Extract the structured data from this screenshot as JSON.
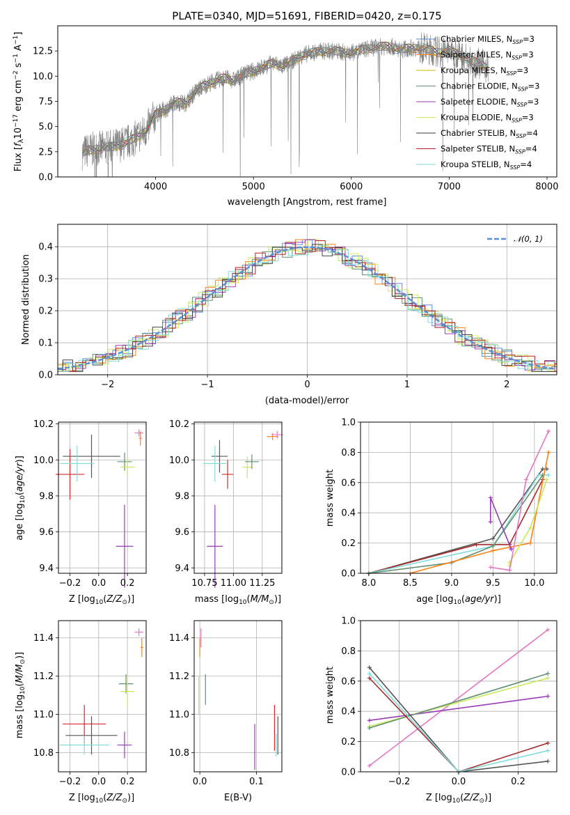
{
  "chart_data": [
    {
      "type": "line",
      "title": "PLATE=0340, MJD=51691, FIBERID=0420, z=0.175",
      "xlabel": "wavelength [Angstrom, rest frame]",
      "ylabel": "Flux [f_λ 10^-17 erg cm^-2 s^-1 A^-1]",
      "xlim": [
        3000,
        8100
      ],
      "ylim": [
        0,
        15
      ],
      "xticks": [
        "4000",
        "5000",
        "6000",
        "7000",
        "8000"
      ],
      "yticks": [
        "0.0",
        "2.5",
        "5.0",
        "7.5",
        "10.0",
        "12.5"
      ],
      "grid": false,
      "legend_position": "top-right",
      "data_color": "#808080",
      "continuum_x": [
        3250,
        3300,
        3400,
        3500,
        3600,
        3700,
        3800,
        3900,
        3950,
        4000,
        4100,
        4200,
        4300,
        4400,
        4500,
        4600,
        4700,
        4800,
        4900,
        5000,
        5100,
        5200,
        5300,
        5400,
        5500,
        5600,
        5700,
        5800,
        5900,
        6000,
        6100,
        6200,
        6300,
        6400,
        6500,
        6600,
        6700,
        6800,
        6900,
        7000,
        7100,
        7200,
        7300,
        7400
      ],
      "continuum_y": [
        2.4,
        2.6,
        2.8,
        2.9,
        3.1,
        3.4,
        3.9,
        4.6,
        5.4,
        6.2,
        6.7,
        7.4,
        7.3,
        8.4,
        9.1,
        9.5,
        9.8,
        9.6,
        10.2,
        10.5,
        10.9,
        11.3,
        11.0,
        11.5,
        12.1,
        12.3,
        12.5,
        12.5,
        12.4,
        12.3,
        12.6,
        12.8,
        12.9,
        13.0,
        12.6,
        12.8,
        12.8,
        12.6,
        12.4,
        12.5,
        12.2,
        11.6,
        11.3,
        10.8
      ]
    },
    {
      "type": "line",
      "title": "",
      "xlabel": "(data-model)/error",
      "ylabel": "Normed distribution",
      "xlim": [
        -2.5,
        2.5
      ],
      "ylim": [
        0,
        0.47
      ],
      "xticks": [
        "−2",
        "−1",
        "0",
        "1",
        "2"
      ],
      "yticks": [
        "0.0",
        "0.1",
        "0.2",
        "0.3",
        "0.4"
      ],
      "grid": true,
      "legend_position": "top-right",
      "legend": [
        "𝒩(0, 1)"
      ],
      "gaussian": {
        "mean": 0,
        "sigma": 1,
        "color": "#5b8ed6"
      },
      "histogram_bin_width": 0.1,
      "histogram_range": [
        -2.5,
        2.5
      ]
    },
    {
      "type": "scatter",
      "xlabel": "Z [log10(Z/Z⊙)]",
      "ylabel": "age  [log10(age/yr)]",
      "xlim": [
        -0.28,
        0.33
      ],
      "ylim": [
        9.37,
        10.21
      ],
      "xticks": [
        "−0.2",
        "0.0",
        "0.2"
      ],
      "yticks": [
        "9.4",
        "9.6",
        "9.8",
        "10.0",
        "10.2"
      ],
      "grid": true,
      "points": [
        {
          "x": -0.2,
          "y": 9.92,
          "xerr": 0.1,
          "yerr": 0.14,
          "color": "#d62728"
        },
        {
          "x": -0.05,
          "y": 10.02,
          "xerr": 0.2,
          "yerr": 0.12,
          "color": "#555555"
        },
        {
          "x": -0.15,
          "y": 9.98,
          "xerr": 0.12,
          "yerr": 0.1,
          "color": "#7fdbda"
        },
        {
          "x": 0.18,
          "y": 9.52,
          "xerr": 0.06,
          "yerr": 0.23,
          "color": "#9a3ab5"
        },
        {
          "x": 0.18,
          "y": 9.99,
          "xerr": 0.05,
          "yerr": 0.05,
          "color": "#5f8f6f"
        },
        {
          "x": 0.2,
          "y": 9.96,
          "xerr": 0.05,
          "yerr": 0.05,
          "color": "#c8e85a"
        },
        {
          "x": 0.28,
          "y": 10.15,
          "xerr": 0.03,
          "yerr": 0.02,
          "color": "#e377c2"
        },
        {
          "x": 0.29,
          "y": 10.12,
          "xerr": 0.01,
          "yerr": 0.04,
          "color": "#ff7f0e"
        }
      ]
    },
    {
      "type": "scatter",
      "xlabel": "mass [log10(M/M⊙)]",
      "ylabel": "",
      "xlim": [
        10.66,
        11.42
      ],
      "ylim": [
        9.37,
        10.21
      ],
      "xticks": [
        "10.75",
        "11.00",
        "11.25"
      ],
      "yticks": [
        "9.4",
        "9.6",
        "9.8",
        "10.0",
        "10.2"
      ],
      "grid": true,
      "points": [
        {
          "x": 10.84,
          "y": 9.52,
          "xerr": 0.07,
          "yerr": 0.23,
          "color": "#9a3ab5"
        },
        {
          "x": 10.88,
          "y": 10.02,
          "xerr": 0.07,
          "yerr": 0.09,
          "color": "#555555"
        },
        {
          "x": 10.84,
          "y": 9.98,
          "xerr": 0.1,
          "yerr": 0.1,
          "color": "#7fdbda"
        },
        {
          "x": 10.95,
          "y": 9.92,
          "xerr": 0.05,
          "yerr": 0.08,
          "color": "#d62728"
        },
        {
          "x": 11.12,
          "y": 9.96,
          "xerr": 0.04,
          "yerr": 0.06,
          "color": "#c8e85a"
        },
        {
          "x": 11.16,
          "y": 9.99,
          "xerr": 0.06,
          "yerr": 0.04,
          "color": "#5f8f6f"
        },
        {
          "x": 11.34,
          "y": 10.13,
          "xerr": 0.05,
          "yerr": 0.02,
          "color": "#ff7f0e"
        },
        {
          "x": 11.38,
          "y": 10.14,
          "xerr": 0.05,
          "yerr": 0.02,
          "color": "#e377c2"
        }
      ]
    },
    {
      "type": "line",
      "xlabel": "age  [log10(age/yr)]",
      "ylabel": "mass weight",
      "xlim": [
        7.9,
        10.27
      ],
      "ylim": [
        0,
        1
      ],
      "xticks": [
        "8.0",
        "8.5",
        "9.0",
        "9.5",
        "10.0"
      ],
      "yticks": [
        "0.0",
        "0.2",
        "0.4",
        "0.6",
        "0.8",
        "1.0"
      ],
      "grid": true,
      "series": [
        {
          "color": "#555555",
          "x": [
            8.0,
            9.5,
            10.1,
            10.15
          ],
          "y": [
            0.0,
            0.23,
            0.69,
            0.69
          ]
        },
        {
          "color": "#a52a2a",
          "x": [
            8.0,
            9.3,
            9.7,
            10.1
          ],
          "y": [
            0.0,
            0.19,
            0.19,
            0.62
          ]
        },
        {
          "color": "#7fdbda",
          "x": [
            8.0,
            9.5,
            10.05,
            10.17
          ],
          "y": [
            0.0,
            0.18,
            0.65,
            0.65
          ]
        },
        {
          "color": "#5f8f6f",
          "x": [
            8.0,
            9.0,
            9.5,
            10.1
          ],
          "y": [
            0.0,
            0.07,
            0.18,
            0.65
          ]
        },
        {
          "color": "#ff7f0e",
          "x": [
            8.5,
            9.5,
            9.95,
            10.17
          ],
          "y": [
            0.0,
            0.15,
            0.2,
            0.8
          ]
        },
        {
          "color": "#9a3ab5",
          "x": [
            9.47,
            9.47,
            9.72,
            9.72
          ],
          "y": [
            0.34,
            0.5,
            0.16,
            0.16
          ]
        },
        {
          "color": "#c8e85a",
          "x": [
            9.7,
            9.7,
            9.95,
            10.15
          ],
          "y": [
            0.05,
            0.07,
            0.3,
            0.62
          ]
        },
        {
          "color": "#e377c2",
          "x": [
            9.47,
            9.7,
            9.9,
            10.17
          ],
          "y": [
            0.04,
            0.02,
            0.62,
            0.94
          ]
        }
      ]
    },
    {
      "type": "scatter",
      "xlabel": "Z [log10(Z/Z⊙)]",
      "ylabel": "mass [log10(M/M⊙)]",
      "xlim": [
        -0.28,
        0.33
      ],
      "ylim": [
        10.7,
        11.49
      ],
      "xticks": [
        "−0.2",
        "0.0",
        "0.2"
      ],
      "yticks": [
        "10.8",
        "11.0",
        "11.2",
        "11.4"
      ],
      "grid": true,
      "points": [
        {
          "x": -0.1,
          "y": 10.95,
          "xerr": 0.15,
          "yerr": 0.1,
          "color": "#d62728"
        },
        {
          "x": -0.05,
          "y": 10.89,
          "xerr": 0.18,
          "yerr": 0.1,
          "color": "#555555"
        },
        {
          "x": -0.1,
          "y": 10.84,
          "xerr": 0.17,
          "yerr": 0.05,
          "color": "#7fdbda"
        },
        {
          "x": 0.18,
          "y": 10.84,
          "xerr": 0.05,
          "yerr": 0.07,
          "color": "#9a3ab5"
        },
        {
          "x": 0.19,
          "y": 11.16,
          "xerr": 0.05,
          "yerr": 0.05,
          "color": "#5f8f6f"
        },
        {
          "x": 0.2,
          "y": 11.12,
          "xerr": 0.05,
          "yerr": 0.08,
          "color": "#c8e85a"
        },
        {
          "x": 0.28,
          "y": 11.43,
          "xerr": 0.03,
          "yerr": 0.02,
          "color": "#e377c2"
        },
        {
          "x": 0.3,
          "y": 11.35,
          "xerr": 0.01,
          "yerr": 0.05,
          "color": "#ff7f0e"
        }
      ]
    },
    {
      "type": "scatter",
      "xlabel": "E(B-V)",
      "ylabel": "",
      "xlim": [
        -0.01,
        0.145
      ],
      "ylim": [
        10.7,
        11.49
      ],
      "xticks": [
        "0.0",
        "0.1"
      ],
      "yticks": [
        "10.8",
        "11.0",
        "11.2",
        "11.4"
      ],
      "grid": true,
      "points": [
        {
          "x": 0.0,
          "y": 11.35,
          "xerr": 0,
          "yerr": 0.05,
          "color": "#ff7f0e"
        },
        {
          "x": 0.002,
          "y": 11.4,
          "xerr": 0,
          "yerr": 0.05,
          "color": "#e377c2"
        },
        {
          "x": -0.002,
          "y": 11.1,
          "xerr": 0,
          "yerr": 0.1,
          "color": "#c8e85a"
        },
        {
          "x": 0.01,
          "y": 11.13,
          "xerr": 0,
          "yerr": 0.08,
          "color": "#5f8f6f"
        },
        {
          "x": 0.097,
          "y": 10.83,
          "xerr": 0,
          "yerr": 0.12,
          "color": "#9a3ab5"
        },
        {
          "x": 0.132,
          "y": 10.93,
          "xerr": 0,
          "yerr": 0.12,
          "color": "#d62728"
        },
        {
          "x": 0.138,
          "y": 10.89,
          "xerr": 0,
          "yerr": 0.1,
          "color": "#555555"
        },
        {
          "x": 0.135,
          "y": 10.84,
          "xerr": 0,
          "yerr": 0.06,
          "color": "#7fdbda"
        }
      ]
    },
    {
      "type": "line",
      "xlabel": "Z [log10(Z/Z⊙)]",
      "ylabel": "mass weight",
      "xlim": [
        -0.33,
        0.33
      ],
      "ylim": [
        0,
        1
      ],
      "xticks": [
        "−0.2",
        "0.0",
        "0.2"
      ],
      "yticks": [
        "0.0",
        "0.2",
        "0.4",
        "0.6",
        "0.8",
        "1.0"
      ],
      "grid": true,
      "series": [
        {
          "color": "#e377c2",
          "x": [
            -0.3,
            0.3
          ],
          "y": [
            0.04,
            0.94
          ]
        },
        {
          "color": "#9a3ab5",
          "x": [
            -0.3,
            0.3
          ],
          "y": [
            0.34,
            0.5
          ]
        },
        {
          "color": "#c8e85a",
          "x": [
            -0.3,
            0.3
          ],
          "y": [
            0.3,
            0.62
          ]
        },
        {
          "color": "#5f8f6f",
          "x": [
            -0.3,
            0.3
          ],
          "y": [
            0.29,
            0.65
          ]
        },
        {
          "color": "#555555",
          "x": [
            -0.3,
            0.0,
            0.3
          ],
          "y": [
            0.69,
            0.0,
            0.07
          ]
        },
        {
          "color": "#a52a2a",
          "x": [
            -0.3,
            0.0,
            0.3
          ],
          "y": [
            0.62,
            0.0,
            0.19
          ]
        },
        {
          "color": "#7fdbda",
          "x": [
            -0.3,
            0.0,
            0.3
          ],
          "y": [
            0.65,
            0.0,
            0.14
          ]
        }
      ]
    }
  ],
  "legend": {
    "spectrum": [
      {
        "label": "Chabrier MILES, N_SSP=3",
        "color": "#5b8ed6"
      },
      {
        "label": "Salpeter MILES, N_SSP=3",
        "color": "#ff7f0e"
      },
      {
        "label": "Kroupa MILES, N_SSP=3",
        "color": "#c8b400"
      },
      {
        "label": "Chabrier ELODIE, N_SSP=3",
        "color": "#5f8f6f"
      },
      {
        "label": "Salpeter ELODIE, N_SSP=3",
        "color": "#9a3ab5"
      },
      {
        "label": "Kroupa ELODIE, N_SSP=3",
        "color": "#c8e85a"
      },
      {
        "label": "Chabrier STELIB, N_SSP=4",
        "color": "#333333"
      },
      {
        "label": "Salpeter STELIB, N_SSP=4",
        "color": "#b22222"
      },
      {
        "label": "Kroupa STELIB, N_SSP=4",
        "color": "#7fdbda"
      }
    ]
  },
  "colors": {
    "hist": [
      "#5b8ed6",
      "#ff7f0e",
      "#c8e85a",
      "#5f8f6f",
      "#9a3ab5",
      "#d4e86a",
      "#444444",
      "#b22222",
      "#7fdbda"
    ]
  }
}
